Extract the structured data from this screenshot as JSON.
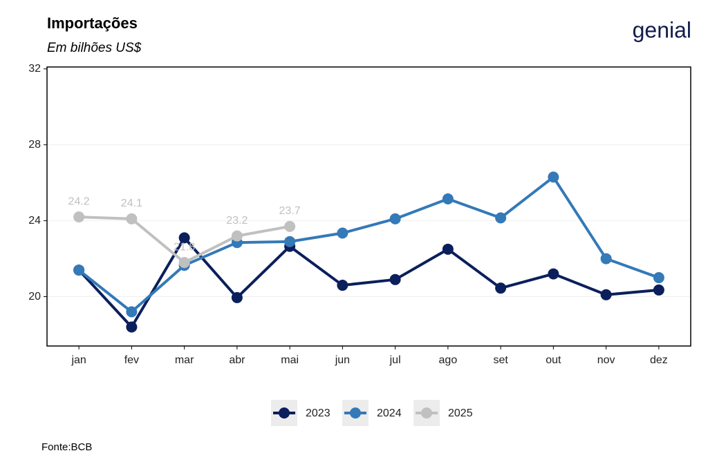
{
  "chart_data": {
    "type": "line",
    "title": "Importações",
    "subtitle": "Em bilhões US$",
    "source": "Fonte:BCB",
    "brand": "genial",
    "categories": [
      "jan",
      "fev",
      "mar",
      "abr",
      "mai",
      "jun",
      "jul",
      "ago",
      "set",
      "out",
      "nov",
      "dez"
    ],
    "series": [
      {
        "name": "2023",
        "color": "#0b1f5c",
        "values": [
          21.4,
          18.4,
          23.1,
          19.95,
          22.65,
          20.6,
          20.9,
          22.5,
          20.45,
          21.2,
          20.1,
          20.35
        ]
      },
      {
        "name": "2024",
        "color": "#3479b8",
        "values": [
          21.4,
          19.2,
          21.65,
          22.85,
          22.9,
          23.35,
          24.1,
          25.15,
          24.15,
          26.3,
          22.0,
          21.0
        ]
      },
      {
        "name": "2025",
        "color": "#c0c0c0",
        "values": [
          24.2,
          24.1,
          21.8,
          23.2,
          23.7,
          null,
          null,
          null,
          null,
          null,
          null,
          null
        ],
        "show_labels": true
      }
    ],
    "ylim": [
      17.4,
      32.1
    ],
    "yticks": [
      20,
      24,
      28,
      32
    ],
    "grid": true,
    "legend": "bottom"
  }
}
